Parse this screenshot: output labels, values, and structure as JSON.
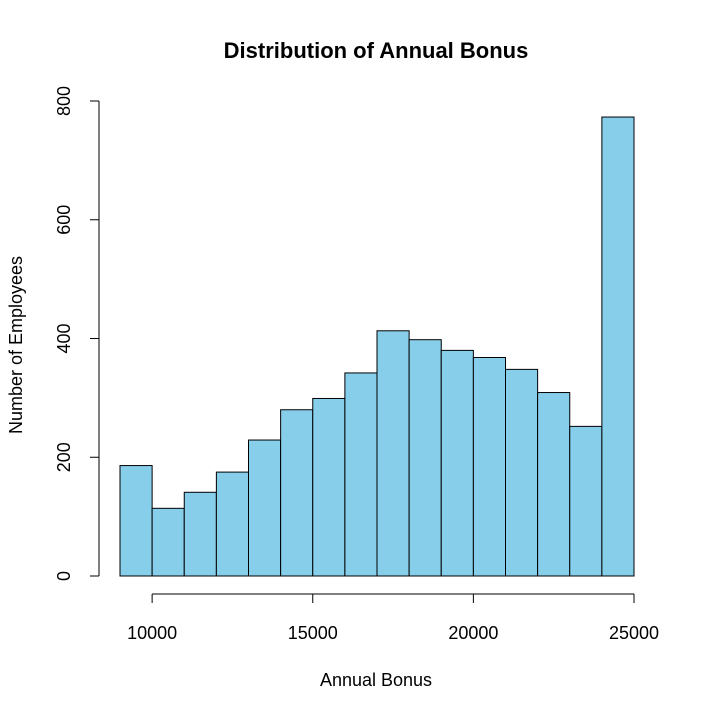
{
  "chart_data": {
    "type": "bar",
    "title": "Distribution of Annual Bonus",
    "xlabel": "Annual Bonus",
    "ylabel": "Number of Employees",
    "bin_edges": [
      9000,
      10000,
      11000,
      12000,
      13000,
      14000,
      15000,
      16000,
      17000,
      18000,
      19000,
      20000,
      21000,
      22000,
      23000,
      24000,
      25000
    ],
    "values": [
      186,
      114,
      141,
      175,
      229,
      280,
      299,
      342,
      413,
      398,
      380,
      368,
      348,
      309,
      252,
      773
    ],
    "xlim": [
      9000,
      25000
    ],
    "ylim": [
      0,
      800
    ],
    "x_ticks": [
      10000,
      15000,
      20000,
      25000
    ],
    "y_ticks": [
      0,
      200,
      400,
      600,
      800
    ],
    "x_tick_labels": [
      "10000",
      "15000",
      "20000",
      "25000"
    ],
    "y_tick_labels": [
      "0",
      "200",
      "400",
      "600",
      "800"
    ],
    "bar_color": "#87CEEB",
    "grid": false,
    "legend": "none"
  }
}
